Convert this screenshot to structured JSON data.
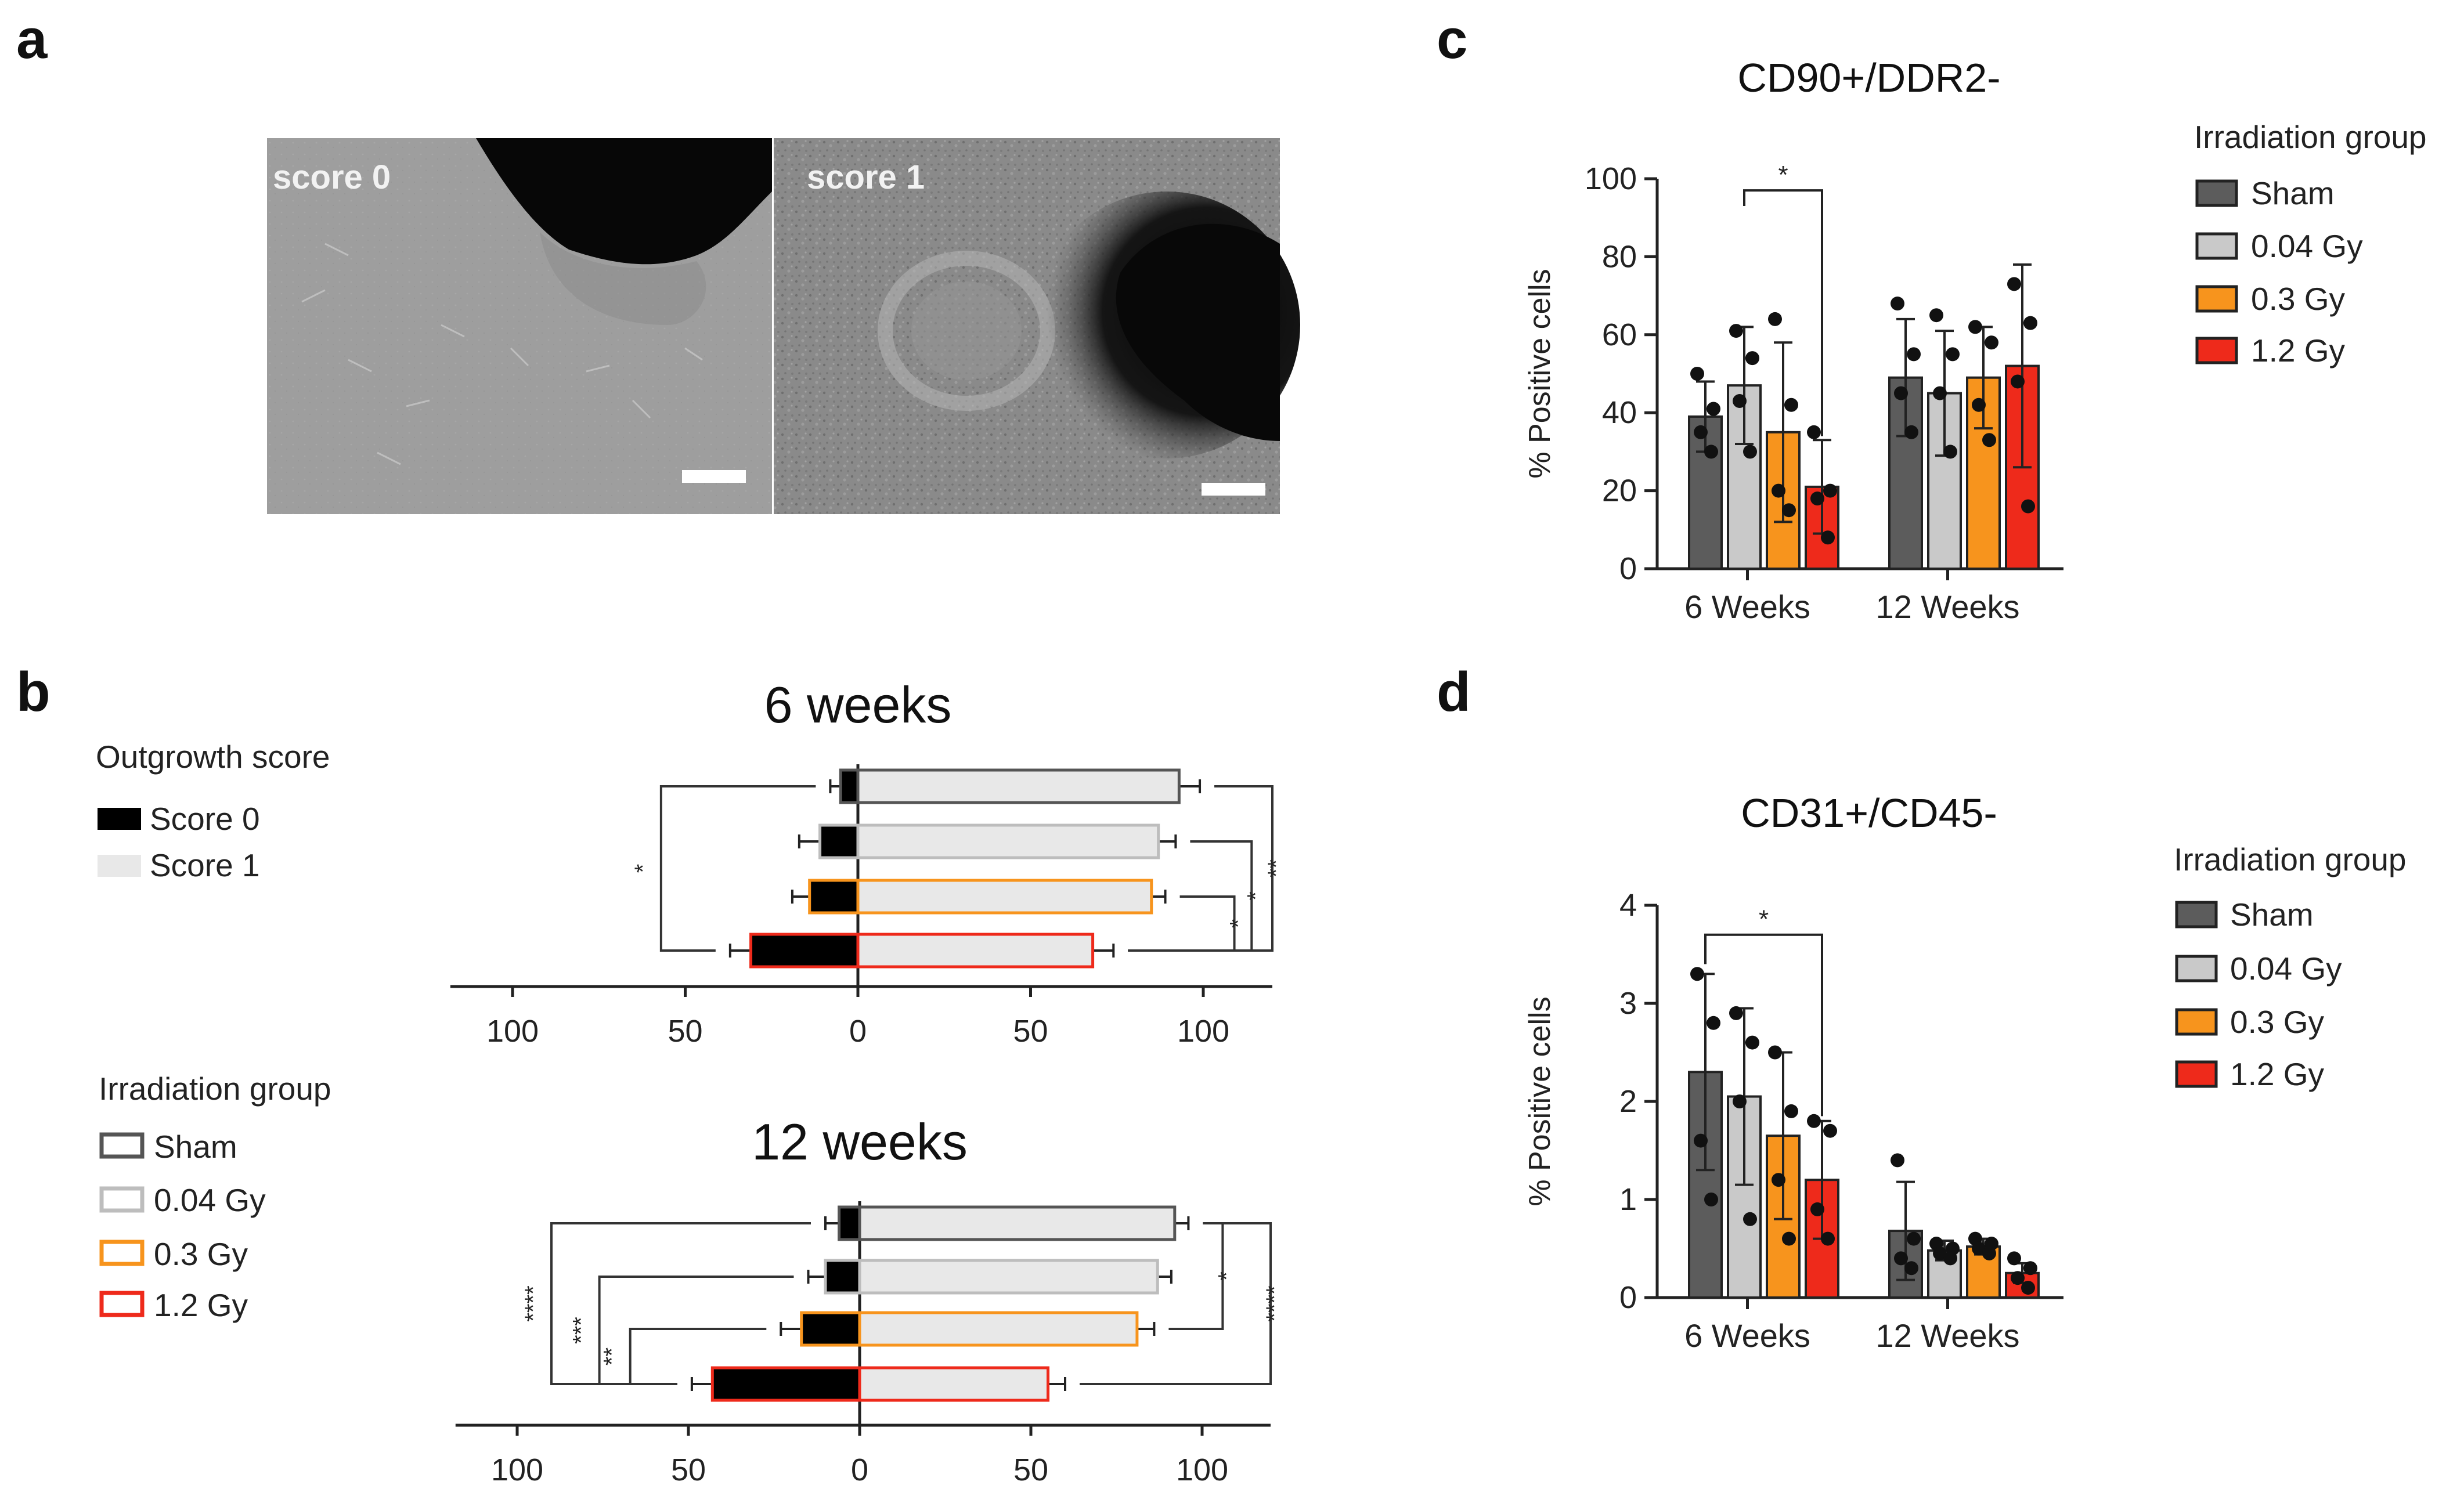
{
  "panel_letters": {
    "a": "a",
    "b": "b",
    "c": "c",
    "d": "d"
  },
  "panel_a": {
    "left_label": "score 0",
    "right_label": "score 1"
  },
  "colors": {
    "sham": "#5c5c5c",
    "gy004": "#c9c9c9",
    "gy03": "#f7941d",
    "gy12": "#ee2a1b",
    "score0": "#000000",
    "score1": "#e8e8e8",
    "outline_sham": "#555555",
    "outline_004": "#bdbdbd",
    "outline_03": "#f7941d",
    "outline_12": "#ee2a1b"
  },
  "legends": {
    "outgrowth_title": "Outgrowth score",
    "outgrowth_items": [
      "Score 0",
      "Score 1"
    ],
    "irradiation_title": "Irradiation group",
    "irradiation_items": [
      "Sham",
      "0.04 Gy",
      "0.3 Gy",
      "1.2 Gy"
    ]
  },
  "chart_data": [
    {
      "panel": "b",
      "type": "bar",
      "orientation": "horizontal-diverging",
      "title": "6 weeks",
      "categories": [
        "Sham",
        "0.04 Gy",
        "0.3 Gy",
        "1.2 Gy"
      ],
      "series": [
        {
          "name": "Score 0",
          "values": [
            5,
            11,
            14,
            31
          ],
          "errors": [
            3,
            6,
            5,
            6
          ]
        },
        {
          "name": "Score 1",
          "values": [
            93,
            87,
            85,
            68
          ],
          "errors": [
            6,
            5,
            4,
            6
          ]
        }
      ],
      "x_ticks": [
        "100",
        "50",
        "0",
        "50",
        "100"
      ],
      "xlim": [
        -100,
        100
      ],
      "significance": {
        "left": [
          {
            "between": [
              "Sham",
              "1.2 Gy"
            ],
            "label": "*"
          }
        ],
        "right": [
          {
            "between": [
              "0.3 Gy",
              "1.2 Gy"
            ],
            "label": "*"
          },
          {
            "between": [
              "0.04 Gy",
              "1.2 Gy"
            ],
            "label": "*"
          },
          {
            "between": [
              "Sham",
              "1.2 Gy"
            ],
            "label": "**"
          }
        ]
      }
    },
    {
      "panel": "b",
      "type": "bar",
      "orientation": "horizontal-diverging",
      "title": "12 weeks",
      "categories": [
        "Sham",
        "0.04 Gy",
        "0.3 Gy",
        "1.2 Gy"
      ],
      "series": [
        {
          "name": "Score 0",
          "values": [
            6,
            10,
            17,
            43
          ],
          "errors": [
            4,
            5,
            6,
            6
          ]
        },
        {
          "name": "Score 1",
          "values": [
            92,
            87,
            81,
            55
          ],
          "errors": [
            4,
            4,
            5,
            5
          ]
        }
      ],
      "x_ticks": [
        "100",
        "50",
        "0",
        "50",
        "100"
      ],
      "xlim": [
        -100,
        100
      ],
      "significance": {
        "left": [
          {
            "between": [
              "0.3 Gy",
              "1.2 Gy"
            ],
            "label": "**"
          },
          {
            "between": [
              "0.04 Gy",
              "1.2 Gy"
            ],
            "label": "***"
          },
          {
            "between": [
              "Sham",
              "1.2 Gy"
            ],
            "label": "****"
          }
        ],
        "right": [
          {
            "between": [
              "Sham",
              "0.3 Gy"
            ],
            "label": "*"
          },
          {
            "between": [
              "Sham",
              "1.2 Gy"
            ],
            "label": "****"
          }
        ]
      }
    },
    {
      "panel": "c",
      "type": "bar",
      "title": "CD90+/DDR2-",
      "ylabel": "% Positive cells",
      "categories": [
        "6 Weeks",
        "12 Weeks"
      ],
      "ylim": [
        0,
        100
      ],
      "yticks": [
        0,
        20,
        40,
        60,
        80,
        100
      ],
      "series": [
        {
          "name": "Sham",
          "values": [
            39,
            49
          ],
          "errors": [
            9,
            15
          ],
          "points": [
            [
              50,
              41,
              35,
              30
            ],
            [
              68,
              55,
              45,
              35
            ]
          ]
        },
        {
          "name": "0.04 Gy",
          "values": [
            47,
            45
          ],
          "errors": [
            15,
            16
          ],
          "points": [
            [
              61,
              54,
              43,
              30
            ],
            [
              65,
              55,
              45,
              30
            ]
          ]
        },
        {
          "name": "0.3 Gy",
          "values": [
            35,
            49
          ],
          "errors": [
            23,
            13
          ],
          "points": [
            [
              64,
              42,
              20,
              15
            ],
            [
              62,
              58,
              42,
              33
            ]
          ]
        },
        {
          "name": "1.2 Gy",
          "values": [
            21,
            52
          ],
          "errors": [
            12,
            26
          ],
          "points": [
            [
              35,
              20,
              18,
              8
            ],
            [
              73,
              63,
              48,
              16
            ]
          ]
        }
      ],
      "significance": [
        {
          "between": [
            "0.04 Gy",
            "1.2 Gy"
          ],
          "group": "6 Weeks",
          "label": "*"
        }
      ]
    },
    {
      "panel": "d",
      "type": "bar",
      "title": "CD31+/CD45-",
      "ylabel": "% Positive cells",
      "categories": [
        "6 Weeks",
        "12 Weeks"
      ],
      "ylim": [
        0,
        4
      ],
      "yticks": [
        0,
        1,
        2,
        3,
        4
      ],
      "series": [
        {
          "name": "Sham",
          "values": [
            2.3,
            0.68
          ],
          "errors": [
            1.0,
            0.5
          ],
          "points": [
            [
              3.3,
              2.8,
              1.6,
              1.0
            ],
            [
              1.4,
              0.6,
              0.4,
              0.3
            ]
          ]
        },
        {
          "name": "0.04 Gy",
          "values": [
            2.05,
            0.48
          ],
          "errors": [
            0.9,
            0.1
          ],
          "points": [
            [
              2.9,
              2.6,
              2.0,
              0.8
            ],
            [
              0.55,
              0.5,
              0.45,
              0.4
            ]
          ]
        },
        {
          "name": "0.3 Gy",
          "values": [
            1.65,
            0.52
          ],
          "errors": [
            0.85,
            0.08
          ],
          "points": [
            [
              2.5,
              1.9,
              1.2,
              0.6
            ],
            [
              0.6,
              0.55,
              0.5,
              0.45
            ]
          ]
        },
        {
          "name": "1.2 Gy",
          "values": [
            1.2,
            0.25
          ],
          "errors": [
            0.6,
            0.1
          ],
          "points": [
            [
              1.8,
              1.7,
              0.9,
              0.6
            ],
            [
              0.4,
              0.3,
              0.2,
              0.1
            ]
          ]
        }
      ],
      "significance": [
        {
          "between": [
            "Sham",
            "1.2 Gy"
          ],
          "group": "6 Weeks",
          "label": "*"
        }
      ]
    }
  ]
}
